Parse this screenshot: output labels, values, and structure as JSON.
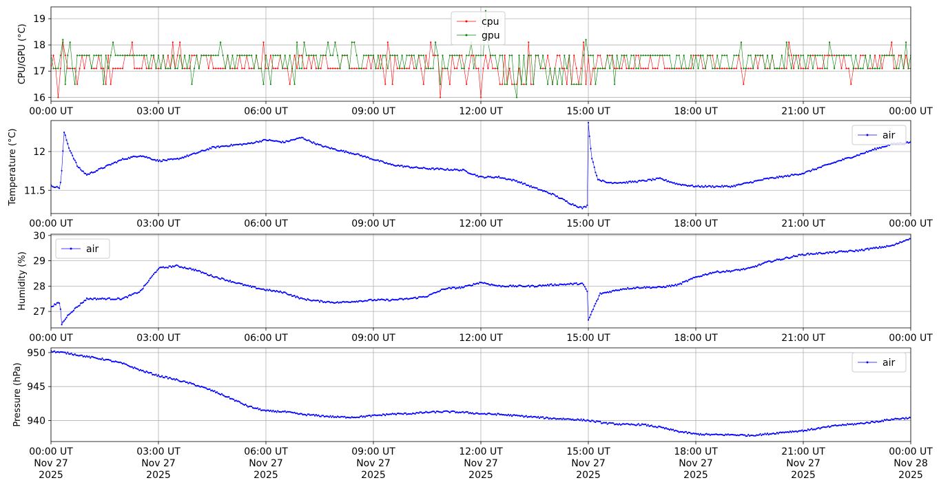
{
  "chart_data": [
    {
      "type": "line",
      "ylabel": "CPU/GPU (°C)",
      "xlim": [
        "00:00",
        "24:00"
      ],
      "ylim": [
        15.85,
        19.45
      ],
      "yticks": [
        16,
        17,
        18,
        19
      ],
      "grid": true,
      "legend": "top-center",
      "xtick_labels": [
        "00:00 UT",
        "03:00 UT",
        "06:00 UT",
        "09:00 UT",
        "12:00 UT",
        "15:00 UT",
        "18:00 UT",
        "21:00 UT",
        "00:00 UT"
      ],
      "series": [
        {
          "name": "cpu",
          "color": "#ff0000",
          "kind": "quantized-noisy",
          "levels": [
            16.0,
            16.5,
            17.1,
            17.6,
            18.1
          ],
          "sample_interval_min": 4,
          "typical_value": 17.1,
          "notable_points": [
            {
              "x": "00:10",
              "y": 16.0
            },
            {
              "x": "00:18",
              "y": 18.1
            },
            {
              "x": "06:40",
              "y": 16.5
            },
            {
              "x": "10:50",
              "y": 16.0
            },
            {
              "x": "12:00",
              "y": 16.0
            },
            {
              "x": "14:50",
              "y": 18.1
            },
            {
              "x": "22:20",
              "y": 16.5
            }
          ]
        },
        {
          "name": "gpu",
          "color": "#008000",
          "kind": "quantized-noisy",
          "levels": [
            16.0,
            16.5,
            17.1,
            17.6,
            18.1,
            19.2
          ],
          "sample_interval_min": 4,
          "typical_value": 17.6,
          "notable_points": [
            {
              "x": "00:20",
              "y": 18.2
            },
            {
              "x": "12:08",
              "y": 19.3
            },
            {
              "x": "13:00",
              "y": 16.0
            },
            {
              "x": "14:55",
              "y": 18.2
            }
          ]
        }
      ]
    },
    {
      "type": "line",
      "ylabel": "Temperature (°C)",
      "xlim": [
        "00:00",
        "24:00"
      ],
      "ylim": [
        11.2,
        12.4
      ],
      "yticks": [
        11.5,
        12.0
      ],
      "grid": true,
      "legend": "top-right",
      "xtick_labels": [
        "00:00 UT",
        "03:00 UT",
        "06:00 UT",
        "09:00 UT",
        "12:00 UT",
        "15:00 UT",
        "18:00 UT",
        "21:00 UT",
        "00:00 UT"
      ],
      "series": [
        {
          "name": "air",
          "color": "#0000ff",
          "points": [
            [
              "00:00",
              11.56
            ],
            [
              "00:15",
              11.53
            ],
            [
              "00:18",
              11.75
            ],
            [
              "00:22",
              12.25
            ],
            [
              "00:30",
              12.05
            ],
            [
              "00:45",
              11.8
            ],
            [
              "01:00",
              11.7
            ],
            [
              "01:30",
              11.8
            ],
            [
              "02:00",
              11.9
            ],
            [
              "02:30",
              11.95
            ],
            [
              "03:00",
              11.88
            ],
            [
              "03:30",
              11.9
            ],
            [
              "04:00",
              11.97
            ],
            [
              "04:30",
              12.05
            ],
            [
              "05:00",
              12.08
            ],
            [
              "05:30",
              12.1
            ],
            [
              "06:00",
              12.15
            ],
            [
              "06:30",
              12.12
            ],
            [
              "07:00",
              12.18
            ],
            [
              "07:30",
              12.08
            ],
            [
              "08:00",
              12.02
            ],
            [
              "08:30",
              11.97
            ],
            [
              "09:00",
              11.9
            ],
            [
              "09:30",
              11.83
            ],
            [
              "10:00",
              11.8
            ],
            [
              "10:30",
              11.78
            ],
            [
              "11:00",
              11.77
            ],
            [
              "11:30",
              11.76
            ],
            [
              "12:00",
              11.67
            ],
            [
              "12:30",
              11.67
            ],
            [
              "13:00",
              11.62
            ],
            [
              "13:30",
              11.53
            ],
            [
              "14:00",
              11.45
            ],
            [
              "14:30",
              11.33
            ],
            [
              "14:50",
              11.27
            ],
            [
              "14:58",
              11.3
            ],
            [
              "15:00",
              12.38
            ],
            [
              "15:05",
              11.95
            ],
            [
              "15:15",
              11.65
            ],
            [
              "15:30",
              11.6
            ],
            [
              "16:00",
              11.6
            ],
            [
              "16:30",
              11.62
            ],
            [
              "17:00",
              11.65
            ],
            [
              "17:30",
              11.58
            ],
            [
              "18:00",
              11.55
            ],
            [
              "18:30",
              11.55
            ],
            [
              "19:00",
              11.55
            ],
            [
              "19:30",
              11.6
            ],
            [
              "20:00",
              11.65
            ],
            [
              "20:30",
              11.68
            ],
            [
              "21:00",
              11.72
            ],
            [
              "21:30",
              11.8
            ],
            [
              "22:00",
              11.88
            ],
            [
              "22:30",
              11.95
            ],
            [
              "23:00",
              12.03
            ],
            [
              "23:30",
              12.1
            ],
            [
              "24:00",
              12.12
            ]
          ]
        }
      ]
    },
    {
      "type": "line",
      "ylabel": "Humidity (%)",
      "xlim": [
        "00:00",
        "24:00"
      ],
      "ylim": [
        26.35,
        30.05
      ],
      "yticks": [
        27,
        28,
        29,
        30
      ],
      "grid": true,
      "legend": "top-left",
      "xtick_labels": [
        "00:00 UT",
        "03:00 UT",
        "06:00 UT",
        "09:00 UT",
        "12:00 UT",
        "15:00 UT",
        "18:00 UT",
        "21:00 UT",
        "00:00 UT"
      ],
      "series": [
        {
          "name": "air",
          "color": "#0000ff",
          "points": [
            [
              "00:00",
              27.2
            ],
            [
              "00:15",
              27.35
            ],
            [
              "00:18",
              26.5
            ],
            [
              "00:30",
              26.9
            ],
            [
              "01:00",
              27.5
            ],
            [
              "01:30",
              27.5
            ],
            [
              "02:00",
              27.5
            ],
            [
              "02:30",
              27.8
            ],
            [
              "03:00",
              28.7
            ],
            [
              "03:30",
              28.8
            ],
            [
              "04:00",
              28.65
            ],
            [
              "04:30",
              28.4
            ],
            [
              "05:00",
              28.2
            ],
            [
              "05:30",
              28.0
            ],
            [
              "06:00",
              27.85
            ],
            [
              "06:30",
              27.75
            ],
            [
              "07:00",
              27.5
            ],
            [
              "07:30",
              27.4
            ],
            [
              "08:00",
              27.35
            ],
            [
              "08:30",
              27.4
            ],
            [
              "09:00",
              27.45
            ],
            [
              "09:30",
              27.45
            ],
            [
              "10:00",
              27.5
            ],
            [
              "10:30",
              27.6
            ],
            [
              "11:00",
              27.9
            ],
            [
              "11:30",
              27.95
            ],
            [
              "12:00",
              28.15
            ],
            [
              "12:30",
              28.0
            ],
            [
              "13:00",
              28.0
            ],
            [
              "13:30",
              28.0
            ],
            [
              "14:00",
              28.05
            ],
            [
              "14:50",
              28.1
            ],
            [
              "14:58",
              27.8
            ],
            [
              "15:00",
              26.65
            ],
            [
              "15:10",
              27.2
            ],
            [
              "15:20",
              27.7
            ],
            [
              "16:00",
              27.9
            ],
            [
              "16:30",
              27.95
            ],
            [
              "17:00",
              27.95
            ],
            [
              "17:30",
              28.05
            ],
            [
              "18:00",
              28.35
            ],
            [
              "18:30",
              28.55
            ],
            [
              "19:00",
              28.6
            ],
            [
              "19:30",
              28.7
            ],
            [
              "20:00",
              28.95
            ],
            [
              "20:30",
              29.1
            ],
            [
              "21:00",
              29.25
            ],
            [
              "21:30",
              29.3
            ],
            [
              "22:00",
              29.35
            ],
            [
              "22:30",
              29.4
            ],
            [
              "23:00",
              29.5
            ],
            [
              "23:30",
              29.6
            ],
            [
              "24:00",
              29.9
            ]
          ]
        }
      ]
    },
    {
      "type": "line",
      "ylabel": "Pressure (hPa)",
      "xlim": [
        "00:00",
        "24:00"
      ],
      "ylim": [
        936.9,
        950.7
      ],
      "yticks": [
        940,
        945,
        950
      ],
      "grid": true,
      "legend": "top-right",
      "xtick_labels": [
        "00:00 UT\nNov 27\n2025",
        "03:00 UT\nNov 27\n2025",
        "06:00 UT\nNov 27\n2025",
        "09:00 UT\nNov 27\n2025",
        "12:00 UT\nNov 27\n2025",
        "15:00 UT\nNov 27\n2025",
        "18:00 UT\nNov 27\n2025",
        "21:00 UT\nNov 27\n2025",
        "00:00 UT\nNov 28\n2025"
      ],
      "series": [
        {
          "name": "air",
          "color": "#0000ff",
          "points": [
            [
              "00:00",
              950.2
            ],
            [
              "00:30",
              949.9
            ],
            [
              "01:00",
              949.4
            ],
            [
              "01:30",
              949.0
            ],
            [
              "02:00",
              948.4
            ],
            [
              "02:30",
              947.4
            ],
            [
              "03:00",
              946.6
            ],
            [
              "03:30",
              946.0
            ],
            [
              "04:00",
              945.3
            ],
            [
              "04:30",
              944.4
            ],
            [
              "05:00",
              943.3
            ],
            [
              "05:30",
              942.1
            ],
            [
              "06:00",
              941.4
            ],
            [
              "06:30",
              941.3
            ],
            [
              "07:00",
              940.9
            ],
            [
              "07:30",
              940.7
            ],
            [
              "08:00",
              940.5
            ],
            [
              "08:30",
              940.5
            ],
            [
              "09:00",
              940.7
            ],
            [
              "09:30",
              940.95
            ],
            [
              "10:00",
              941.0
            ],
            [
              "10:30",
              941.2
            ],
            [
              "11:00",
              941.3
            ],
            [
              "11:30",
              941.2
            ],
            [
              "12:00",
              941.0
            ],
            [
              "12:30",
              940.9
            ],
            [
              "13:00",
              940.7
            ],
            [
              "13:30",
              940.5
            ],
            [
              "14:00",
              940.3
            ],
            [
              "14:30",
              940.2
            ],
            [
              "15:00",
              940.0
            ],
            [
              "15:30",
              939.6
            ],
            [
              "16:00",
              939.4
            ],
            [
              "16:30",
              939.4
            ],
            [
              "17:00",
              939.0
            ],
            [
              "17:30",
              938.4
            ],
            [
              "18:00",
              938.0
            ],
            [
              "18:30",
              937.9
            ],
            [
              "19:00",
              937.9
            ],
            [
              "19:30",
              937.8
            ],
            [
              "20:00",
              938.0
            ],
            [
              "20:30",
              938.3
            ],
            [
              "21:00",
              938.5
            ],
            [
              "21:30",
              938.9
            ],
            [
              "22:00",
              939.3
            ],
            [
              "22:30",
              939.5
            ],
            [
              "23:00",
              939.8
            ],
            [
              "23:30",
              940.2
            ],
            [
              "24:00",
              940.4
            ]
          ]
        }
      ]
    }
  ]
}
